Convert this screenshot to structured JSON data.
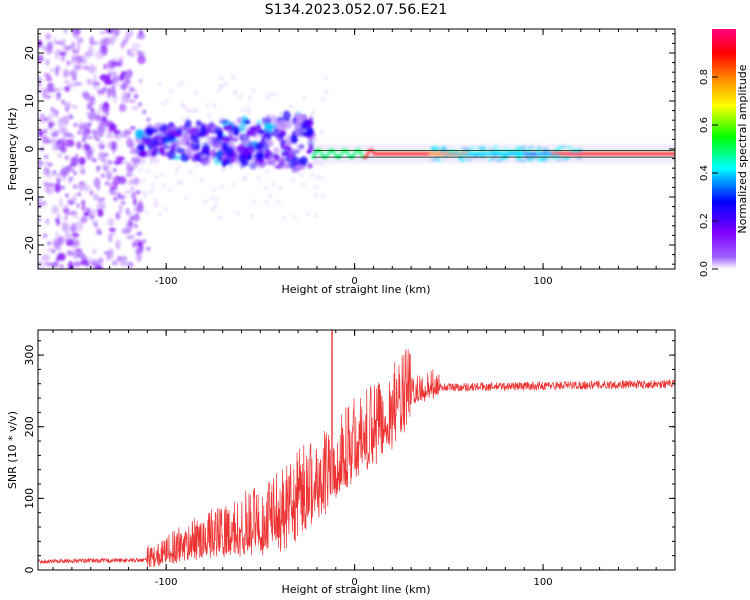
{
  "title": "S134.2023.052.07.56.E21",
  "chart_data": [
    {
      "type": "heatmap",
      "xlabel": "Height of straight line (km)",
      "ylabel": "Frequency (Hz)",
      "xlim": [
        -168,
        170
      ],
      "ylim": [
        -25,
        25
      ],
      "xticks": [
        -100,
        0,
        100
      ],
      "yticks": [
        -20,
        -10,
        0,
        10,
        20
      ],
      "xtick_labels": [
        "-100",
        "0",
        "100"
      ],
      "ytick_labels": [
        "-20",
        "-10",
        "0",
        "10",
        "20"
      ],
      "colorbar": {
        "label": "Normalized spectral amplitude",
        "range": [
          0,
          1
        ],
        "ticks": [
          0.0,
          0.2,
          0.4,
          0.6,
          0.8
        ],
        "tick_labels": [
          "0.0",
          "0.2",
          "0.4",
          "0.6",
          "0.8"
        ],
        "colormap": [
          "#ffffff",
          "#8000ff",
          "#0000ff",
          "#00ffff",
          "#00ff00",
          "#ffff00",
          "#ff8000",
          "#ff0000",
          "#ff0080"
        ]
      },
      "description_features": {
        "noise_region_x": [
          -168,
          -115
        ],
        "broad_spread_x": [
          -115,
          -25
        ],
        "narrow_line_start_x": -22,
        "line_frequency_hz": -1
      }
    },
    {
      "type": "line",
      "xlabel": "Height of straight line (km)",
      "ylabel": "SNR (10 * v/v)",
      "xlim": [
        -168,
        170
      ],
      "ylim": [
        0,
        335
      ],
      "xticks": [
        -100,
        0,
        100
      ],
      "yticks": [
        0,
        100,
        200,
        300
      ],
      "xtick_labels": [
        "-100",
        "0",
        "100"
      ],
      "ytick_labels": [
        "0",
        "100",
        "200",
        "300"
      ],
      "color": "#ee3333",
      "trend_points": [
        {
          "x": -168,
          "y": 12
        },
        {
          "x": -110,
          "y": 14
        },
        {
          "x": -90,
          "y": 30
        },
        {
          "x": -70,
          "y": 45
        },
        {
          "x": -50,
          "y": 55
        },
        {
          "x": -35,
          "y": 70
        },
        {
          "x": -25,
          "y": 100
        },
        {
          "x": -15,
          "y": 120
        },
        {
          "x": -10,
          "y": 140
        },
        {
          "x": 0,
          "y": 165
        },
        {
          "x": 10,
          "y": 185
        },
        {
          "x": 20,
          "y": 210
        },
        {
          "x": 30,
          "y": 245
        },
        {
          "x": 45,
          "y": 255
        },
        {
          "x": 170,
          "y": 260
        }
      ],
      "peak": {
        "x": -12,
        "y": 335
      }
    }
  ]
}
